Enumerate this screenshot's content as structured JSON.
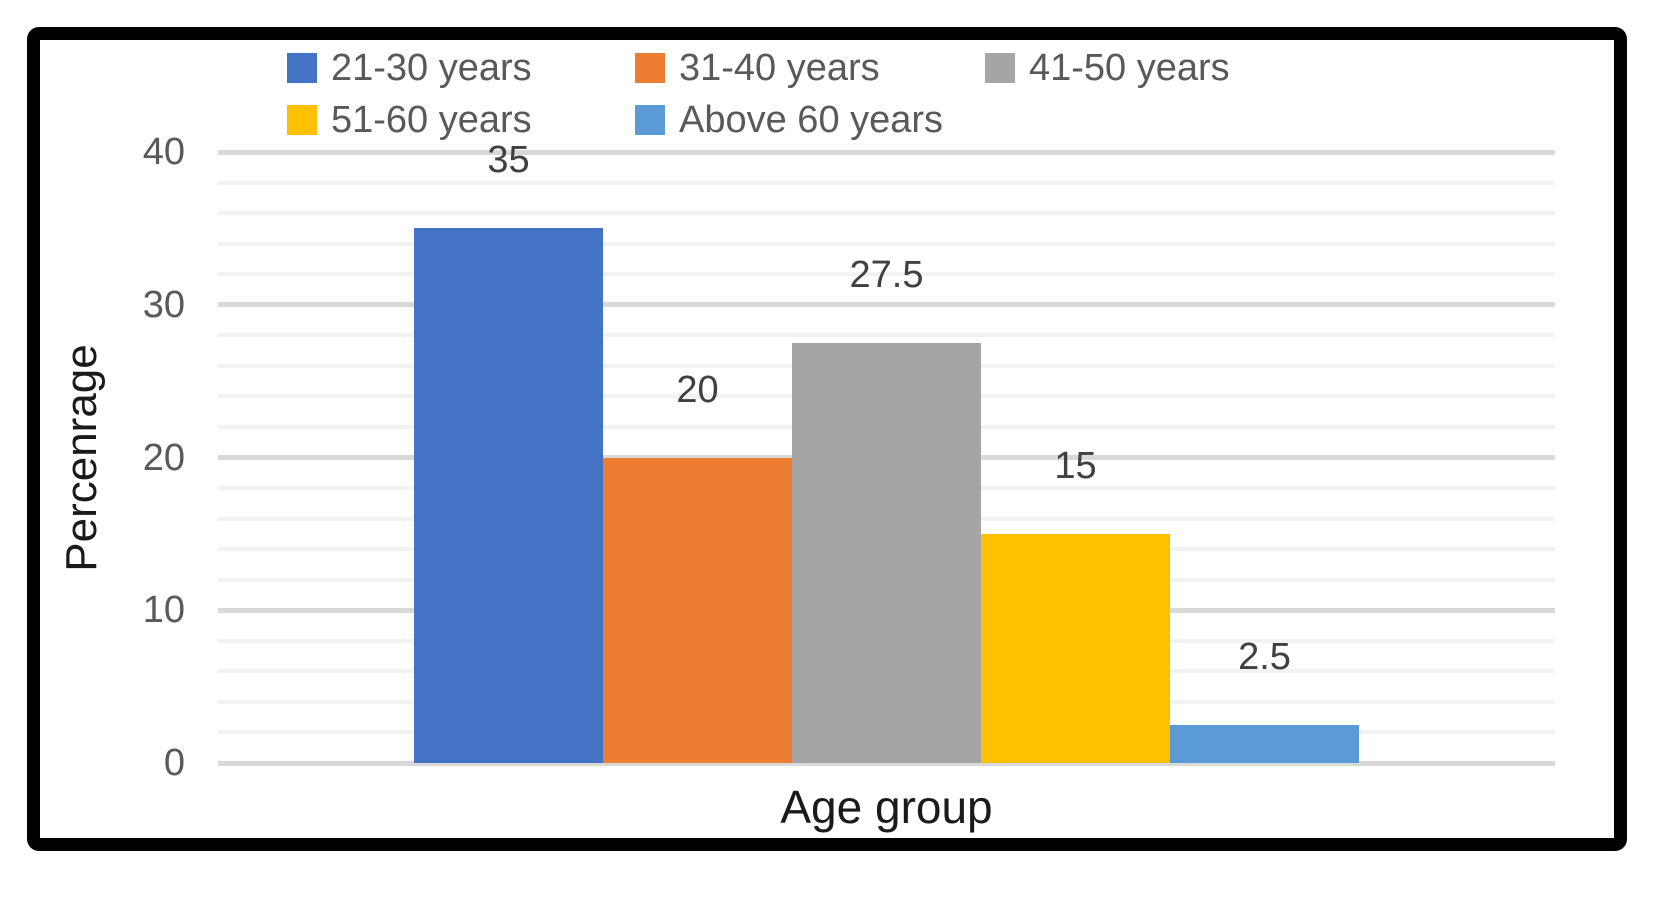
{
  "chart_data": {
    "type": "bar",
    "title": "",
    "xlabel": "Age group",
    "ylabel": "Percenrage",
    "categories": [
      "Age group"
    ],
    "series": [
      {
        "name": "21-30 years",
        "value": 35,
        "data_label": "35",
        "color": "#4472C4"
      },
      {
        "name": "31-40 years",
        "value": 20,
        "data_label": "20",
        "color": "#ED7D31"
      },
      {
        "name": "41-50 years",
        "value": 27.5,
        "data_label": "27.5",
        "color": "#A5A5A5"
      },
      {
        "name": "51-60 years",
        "value": 15,
        "data_label": "15",
        "color": "#FFC000"
      },
      {
        "name": "Above 60 years",
        "value": 2.5,
        "data_label": "2.5",
        "color": "#5B9BD5"
      }
    ],
    "ylim": [
      0,
      40
    ],
    "yticks": [
      "0",
      "10",
      "20",
      "30",
      "40"
    ],
    "minor_grid_step": 2,
    "grid": "horizontal major and minor",
    "legend_position": "top"
  },
  "style": {
    "background_color": "#FFFFFF",
    "frame_border_color": "#000000",
    "major_gridline_color": "#D9D9D9",
    "minor_gridline_color": "#F2F2F2",
    "axis_line_color": "#D9D9D9",
    "tick_label_color": "#595959",
    "legend_text_color": "#595959",
    "data_label_color": "#404040",
    "axis_title_color": "#1A1A1A"
  }
}
